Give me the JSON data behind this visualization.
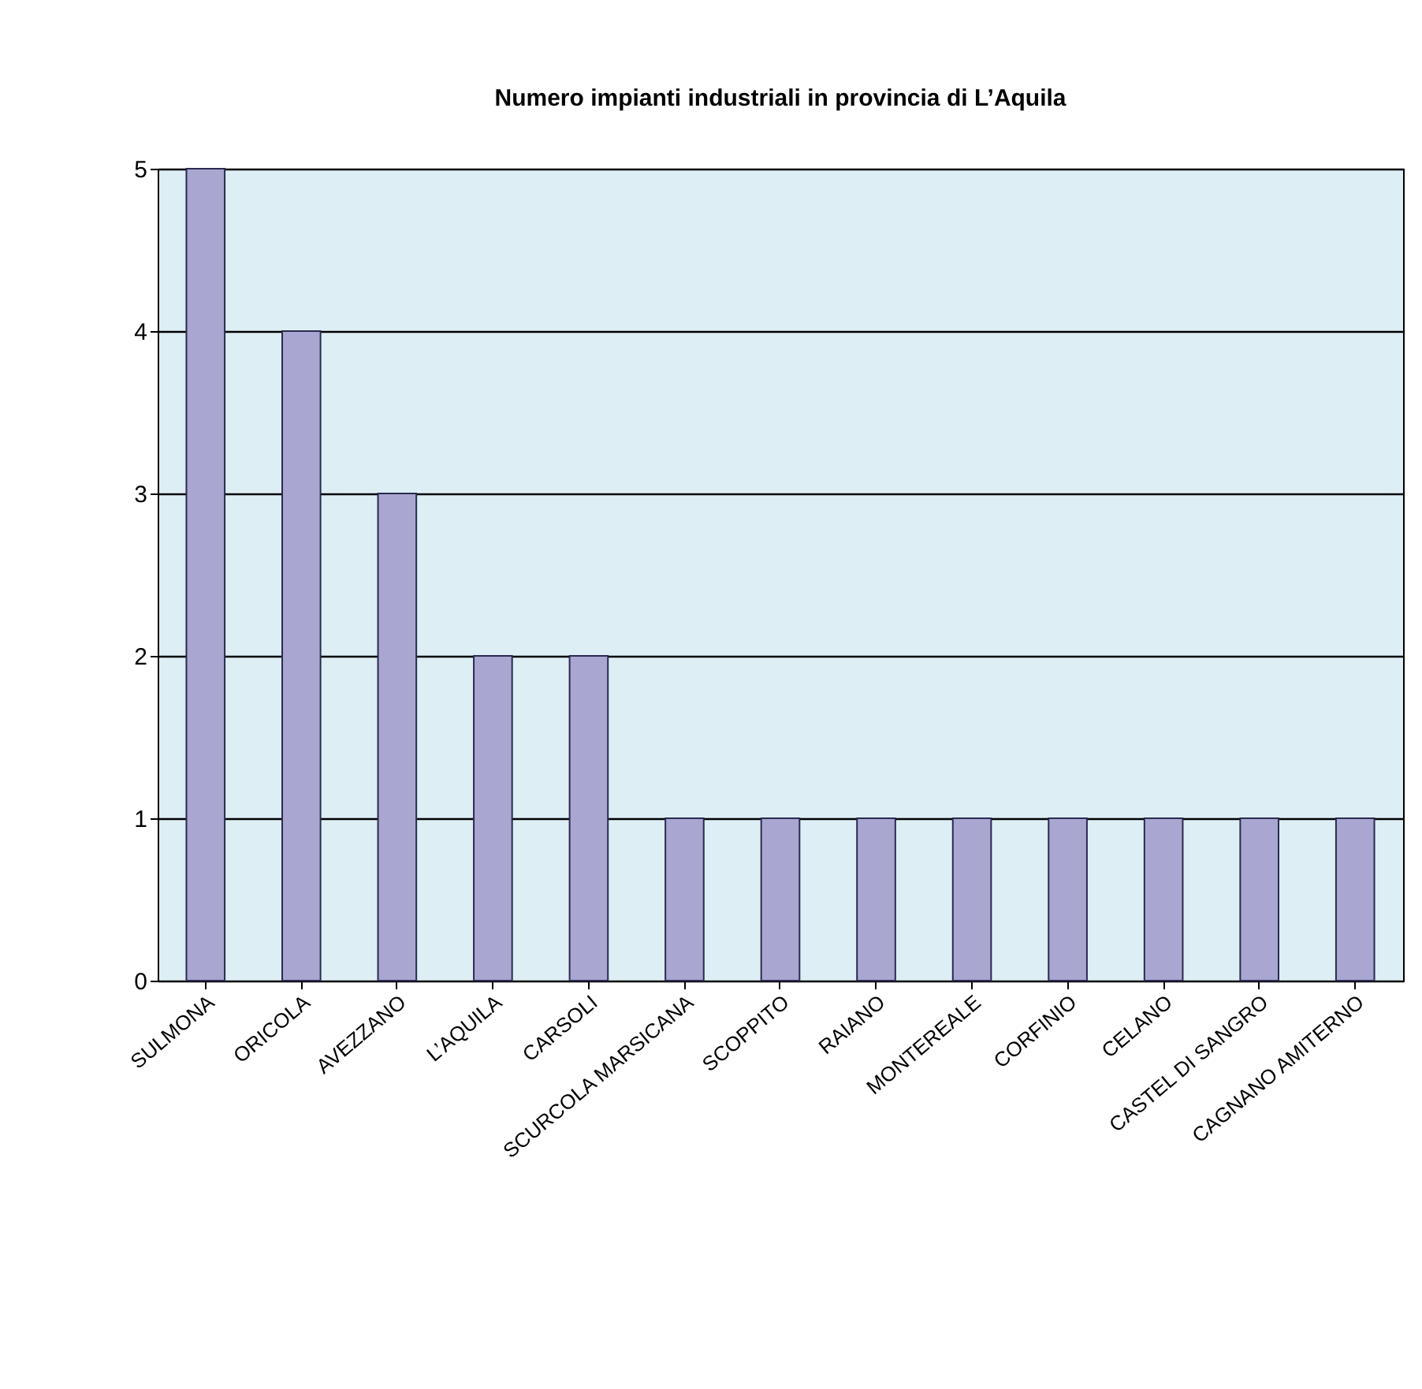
{
  "chart_data": {
    "type": "bar",
    "title": "Numero impianti industriali in provincia di L’Aquila",
    "categories": [
      "SULMONA",
      "ORICOLA",
      "AVEZZANO",
      "L’AQUILA",
      "CARSOLI",
      "SCURCOLA MARSICANA",
      "SCOPPITO",
      "RAIANO",
      "MONTEREALE",
      "CORFINIO",
      "CELANO",
      "CASTEL DI SANGRO",
      "CAGNANO AMITERNO"
    ],
    "values": [
      5,
      4,
      3,
      2,
      2,
      1,
      1,
      1,
      1,
      1,
      1,
      1,
      1
    ],
    "color": "#a9a7d1",
    "ylim": [
      0,
      5
    ],
    "yticks": [
      0,
      1,
      2,
      3,
      4,
      5
    ],
    "grid": "y"
  }
}
